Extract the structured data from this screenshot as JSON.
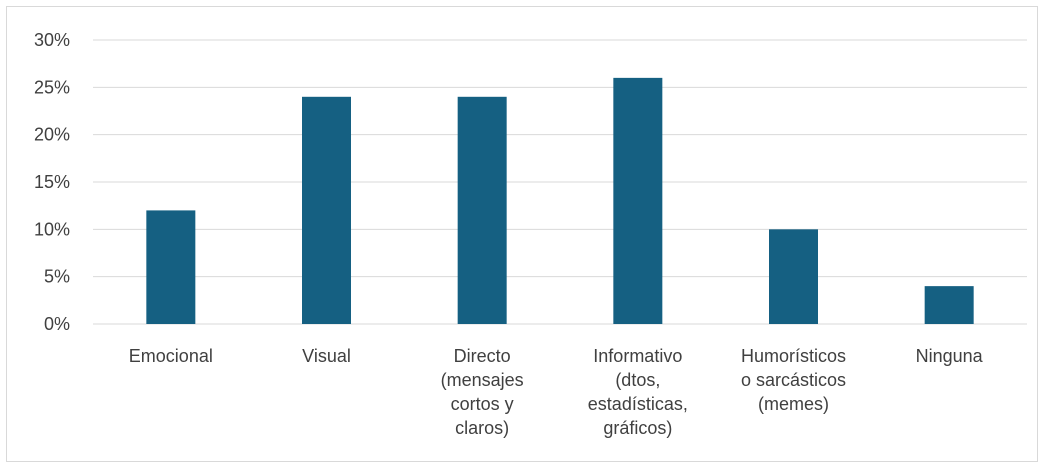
{
  "chart_data": {
    "type": "bar",
    "categories": [
      "Emocional",
      "Visual",
      "Directo (mensajes cortos y claros)",
      "Informativo (dtos, estadísticas, gráficos)",
      "Humorísticos o sarcásticos (memes)",
      "Ninguna"
    ],
    "category_lines": [
      [
        "Emocional"
      ],
      [
        "Visual"
      ],
      [
        "Directo",
        "(mensajes",
        "cortos y",
        "claros)"
      ],
      [
        "Informativo",
        "(dtos,",
        "estadísticas,",
        "gráficos)"
      ],
      [
        "Humorísticos",
        "o sarcásticos",
        "(memes)"
      ],
      [
        "Ninguna"
      ]
    ],
    "values": [
      12,
      24,
      24,
      26,
      10,
      4
    ],
    "unit": "%",
    "ylim": [
      0,
      30
    ],
    "yticks": [
      "0%",
      "5%",
      "10%",
      "15%",
      "20%",
      "25%",
      "30%"
    ],
    "ytick_values": [
      0,
      5,
      10,
      15,
      20,
      25,
      30
    ],
    "grid": true,
    "bar_color": "#156082",
    "grid_color": "#d9d9d9",
    "title": "",
    "xlabel": "",
    "ylabel": ""
  }
}
